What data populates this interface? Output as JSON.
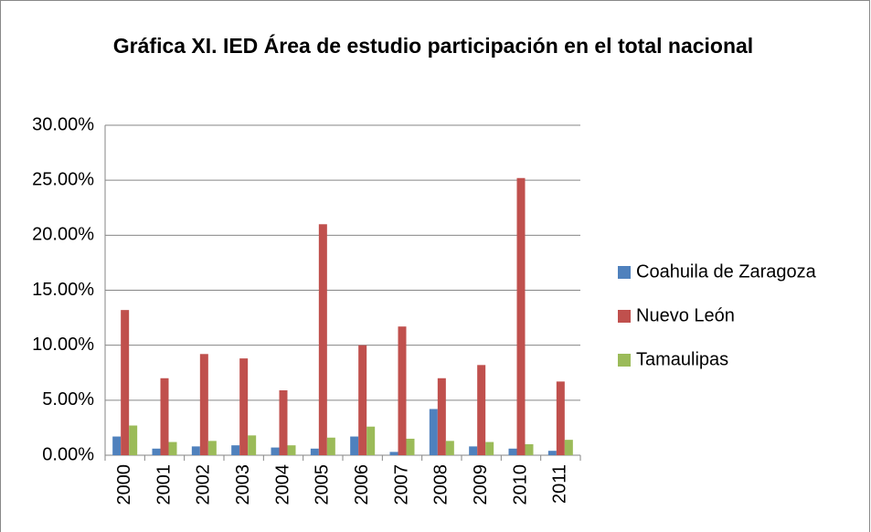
{
  "chart_data": {
    "type": "bar",
    "title": "Gráfica XI. IED  Área de estudio participación en el total nacional",
    "categories": [
      "2000",
      "2001",
      "2002",
      "2003",
      "2004",
      "2005",
      "2006",
      "2007",
      "2008",
      "2009",
      "2010",
      "2011"
    ],
    "series": [
      {
        "name": "Coahuila de Zaragoza",
        "color": "#4f81bd",
        "values": [
          1.7,
          0.6,
          0.8,
          0.9,
          0.7,
          0.6,
          1.7,
          0.3,
          4.2,
          0.8,
          0.6,
          0.4
        ]
      },
      {
        "name": "Nuevo León",
        "color": "#c0504d",
        "values": [
          13.2,
          7.0,
          9.2,
          8.8,
          5.9,
          21.0,
          10.0,
          11.7,
          7.0,
          8.2,
          25.2,
          6.7
        ]
      },
      {
        "name": "Tamaulipas",
        "color": "#9bbb59",
        "values": [
          2.7,
          1.2,
          1.3,
          1.8,
          0.9,
          1.6,
          2.6,
          1.5,
          1.3,
          1.2,
          1.0,
          1.4
        ]
      }
    ],
    "ylim": [
      0,
      30
    ],
    "yticks": [
      {
        "value": 0,
        "label": "0.00%"
      },
      {
        "value": 5,
        "label": "5.00%"
      },
      {
        "value": 10,
        "label": "10.00%"
      },
      {
        "value": 15,
        "label": "15.00%"
      },
      {
        "value": 20,
        "label": "20.00%"
      },
      {
        "value": 25,
        "label": "25.00%"
      },
      {
        "value": 30,
        "label": "30.00%"
      }
    ],
    "grid": true,
    "legend": "right"
  }
}
